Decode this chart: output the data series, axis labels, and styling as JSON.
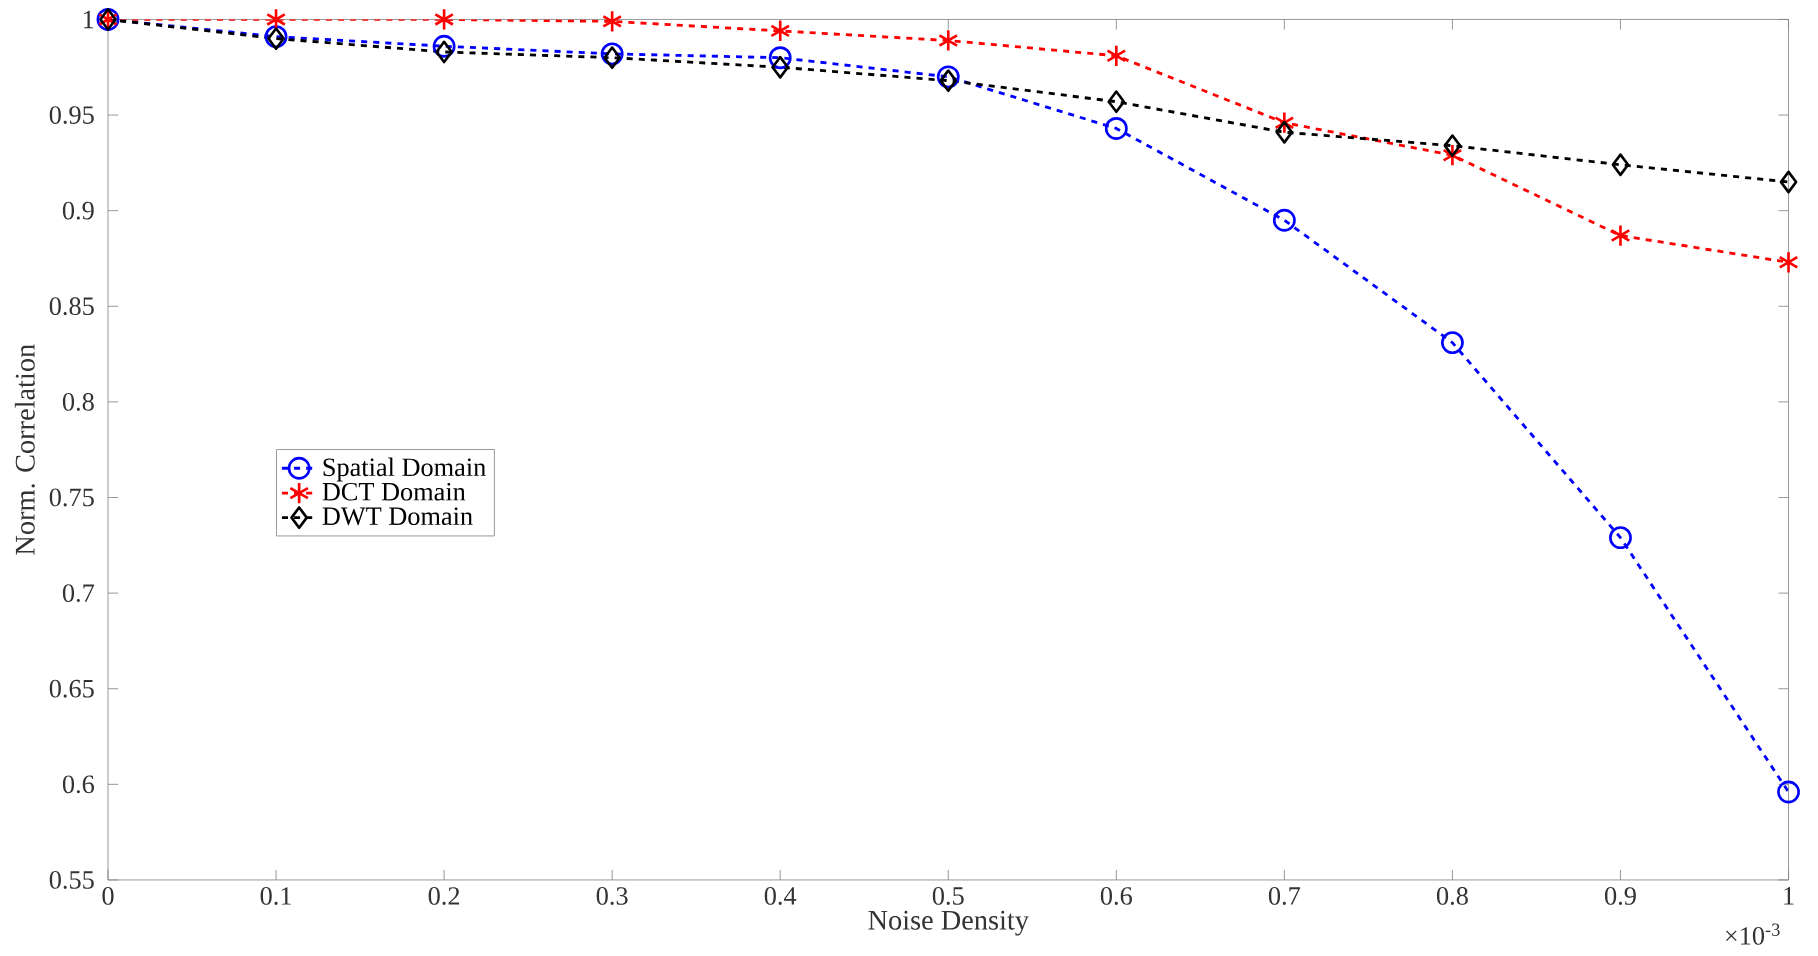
{
  "chart_data": {
    "type": "line",
    "xlabel": "Noise Density",
    "ylabel": "Norm. Correlation",
    "x": [
      0,
      0.1,
      0.2,
      0.3,
      0.4,
      0.5,
      0.6,
      0.7,
      0.8,
      0.9,
      1
    ],
    "series": [
      {
        "name": "Spatial Domain",
        "color": "#0000ff",
        "marker": "circle",
        "values": [
          1,
          0.991,
          0.986,
          0.982,
          0.98,
          0.97,
          0.943,
          0.895,
          0.831,
          0.729,
          0.596
        ]
      },
      {
        "name": "DCT Domain",
        "color": "#ff0000",
        "marker": "cross",
        "values": [
          1,
          1,
          1,
          0.999,
          0.994,
          0.989,
          0.981,
          0.946,
          0.929,
          0.887,
          0.873
        ]
      },
      {
        "name": "DWT Domain",
        "color": "#000000",
        "marker": "diamond",
        "values": [
          1,
          0.99,
          0.983,
          0.98,
          0.975,
          0.968,
          0.957,
          0.941,
          0.934,
          0.924,
          0.915
        ]
      }
    ],
    "xlim": [
      0,
      1
    ],
    "ylim": [
      0.55,
      1
    ],
    "xticks": [
      0,
      0.1,
      0.2,
      0.3,
      0.4,
      0.5,
      0.6,
      0.7,
      0.8,
      0.9,
      1
    ],
    "yticks": [
      0.55,
      0.6,
      0.65,
      0.7,
      0.75,
      0.8,
      0.85,
      0.9,
      0.95,
      1
    ],
    "line_style": "dashed",
    "legend": "left",
    "grid": false,
    "annotations": [
      "×10$^{-3}$"
    ]
  }
}
